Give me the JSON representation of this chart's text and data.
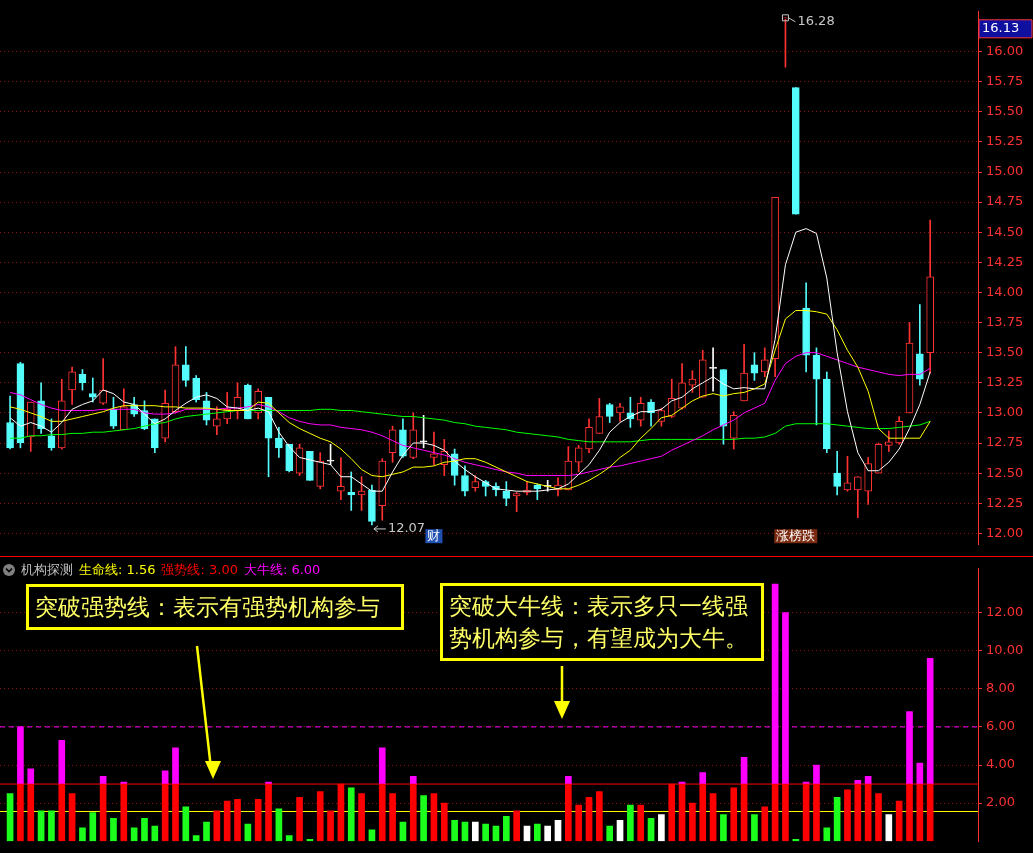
{
  "chart_data": [
    {
      "type": "candlestick",
      "categories": [
        null,
        null,
        null,
        null,
        null,
        null,
        null,
        null,
        null,
        null,
        null,
        null,
        null,
        null,
        null,
        null,
        null,
        null,
        null,
        null,
        null,
        null,
        null,
        null,
        null,
        null,
        null,
        null,
        null,
        null,
        null,
        null,
        null,
        null,
        null,
        null,
        null,
        null,
        null,
        null,
        null,
        null,
        null,
        null,
        null,
        null,
        null,
        null,
        null,
        null,
        null,
        null,
        null,
        null,
        null,
        null,
        null,
        null,
        null,
        null,
        null,
        null,
        null,
        null,
        null,
        null,
        null,
        null,
        null,
        null,
        null,
        null,
        null,
        null,
        null,
        null,
        null,
        null,
        null,
        null,
        null,
        null,
        null,
        null,
        null,
        null,
        null,
        null,
        null,
        null
      ],
      "ohlc": [
        [
          12.92,
          13.14,
          12.7,
          12.71
        ],
        [
          13.41,
          13.42,
          12.71,
          12.75
        ],
        [
          12.8,
          13.09,
          12.68,
          13.09
        ],
        [
          13.1,
          13.25,
          12.83,
          12.87
        ],
        [
          12.81,
          12.95,
          12.69,
          12.71
        ],
        [
          12.71,
          13.28,
          12.7,
          13.1
        ],
        [
          13.19,
          13.38,
          13.07,
          13.34
        ],
        [
          13.32,
          13.36,
          13.19,
          13.25
        ],
        [
          13.16,
          13.29,
          13.09,
          13.13
        ],
        [
          13.08,
          13.45,
          13.07,
          13.19
        ],
        [
          13.03,
          13.13,
          12.87,
          12.89
        ],
        [
          12.86,
          13.2,
          12.86,
          13.05
        ],
        [
          13.07,
          13.13,
          12.97,
          12.99
        ],
        [
          13.02,
          13.1,
          12.86,
          12.87
        ],
        [
          12.95,
          12.95,
          12.67,
          12.71
        ],
        [
          12.79,
          13.19,
          12.76,
          13.08
        ],
        [
          13.01,
          13.55,
          13.0,
          13.4
        ],
        [
          13.4,
          13.55,
          13.22,
          13.27
        ],
        [
          13.29,
          13.31,
          13.09,
          13.11
        ],
        [
          13.1,
          13.17,
          12.9,
          12.94
        ],
        [
          12.89,
          13.05,
          12.82,
          12.95
        ],
        [
          12.95,
          13.17,
          12.91,
          13.03
        ],
        [
          13.02,
          13.25,
          12.95,
          13.13
        ],
        [
          13.23,
          13.24,
          12.95,
          12.95
        ],
        [
          13.0,
          13.2,
          12.95,
          13.18
        ],
        [
          13.13,
          13.13,
          12.47,
          12.79
        ],
        [
          12.79,
          12.88,
          12.63,
          12.71
        ],
        [
          12.74,
          12.74,
          12.51,
          12.52
        ],
        [
          12.5,
          12.74,
          12.48,
          12.71
        ],
        [
          12.68,
          12.68,
          12.44,
          12.44
        ],
        [
          12.39,
          12.67,
          12.37,
          12.6
        ],
        [
          12.6,
          12.74,
          12.57,
          12.6
        ],
        [
          12.35,
          12.63,
          12.28,
          12.39
        ],
        [
          12.34,
          12.51,
          12.19,
          12.32
        ],
        [
          12.32,
          12.47,
          12.19,
          12.35
        ],
        [
          12.36,
          12.4,
          12.07,
          12.1
        ],
        [
          12.23,
          12.62,
          12.11,
          12.6
        ],
        [
          12.67,
          12.89,
          12.59,
          12.86
        ],
        [
          12.86,
          12.95,
          12.63,
          12.64
        ],
        [
          12.63,
          13.0,
          12.62,
          12.86
        ],
        [
          12.76,
          12.98,
          12.71,
          12.76
        ],
        [
          12.63,
          12.84,
          12.57,
          12.66
        ],
        [
          12.57,
          12.78,
          12.48,
          12.68
        ],
        [
          12.66,
          12.7,
          12.4,
          12.48
        ],
        [
          12.48,
          12.56,
          12.31,
          12.35
        ],
        [
          12.38,
          12.48,
          12.35,
          12.43
        ],
        [
          12.43,
          12.44,
          12.31,
          12.39
        ],
        [
          12.39,
          12.42,
          12.31,
          12.36
        ],
        [
          12.35,
          12.43,
          12.23,
          12.29
        ],
        [
          12.31,
          12.34,
          12.18,
          12.33
        ],
        [
          12.34,
          12.43,
          12.32,
          12.36
        ],
        [
          12.4,
          12.41,
          12.28,
          12.37
        ],
        [
          12.39,
          12.44,
          12.35,
          12.39
        ],
        [
          12.36,
          12.46,
          12.31,
          12.4
        ],
        [
          12.36,
          12.72,
          12.36,
          12.6
        ],
        [
          12.59,
          12.73,
          12.51,
          12.71
        ],
        [
          12.7,
          12.95,
          12.67,
          12.88
        ],
        [
          12.83,
          13.12,
          12.83,
          12.97
        ],
        [
          13.07,
          13.08,
          12.92,
          12.97
        ],
        [
          13.0,
          13.08,
          12.93,
          13.05
        ],
        [
          13.0,
          13.13,
          12.88,
          12.95
        ],
        [
          12.94,
          13.13,
          12.89,
          13.08
        ],
        [
          13.09,
          13.11,
          12.89,
          13.0
        ],
        [
          12.93,
          13.04,
          12.89,
          13.02
        ],
        [
          12.97,
          13.28,
          12.96,
          13.12
        ],
        [
          13.04,
          13.41,
          13.03,
          13.25
        ],
        [
          13.23,
          13.35,
          13.17,
          13.28
        ],
        [
          13.13,
          13.52,
          13.13,
          13.44
        ],
        [
          13.37,
          13.54,
          13.18,
          13.37
        ],
        [
          13.36,
          13.36,
          12.74,
          12.89
        ],
        [
          12.79,
          13.01,
          12.7,
          12.98
        ],
        [
          13.1,
          13.57,
          13.1,
          13.33
        ],
        [
          13.4,
          13.5,
          13.27,
          13.33
        ],
        [
          13.34,
          13.54,
          13.3,
          13.44
        ],
        [
          13.45,
          14.79,
          13.3,
          14.79
        ],
        [
          16.27,
          16.28,
          15.87,
          16.28
        ],
        [
          15.7,
          15.7,
          14.65,
          14.65
        ],
        [
          13.87,
          14.08,
          13.34,
          13.48
        ],
        [
          13.48,
          13.54,
          12.9,
          13.28
        ],
        [
          13.28,
          13.34,
          12.67,
          12.7
        ],
        [
          12.5,
          12.68,
          12.32,
          12.39
        ],
        [
          12.36,
          12.64,
          12.35,
          12.42
        ],
        [
          12.36,
          12.47,
          12.13,
          12.47
        ],
        [
          12.35,
          12.63,
          12.24,
          12.58
        ],
        [
          12.5,
          12.75,
          12.5,
          12.74
        ],
        [
          12.73,
          12.85,
          12.68,
          12.76
        ],
        [
          12.75,
          12.97,
          12.74,
          12.93
        ],
        [
          13.0,
          13.75,
          13.0,
          13.58
        ],
        [
          13.49,
          13.9,
          13.23,
          13.28
        ],
        [
          13.5,
          14.6,
          13.33,
          14.13
        ]
      ],
      "colors": [
        "#54fcfc",
        "#54fcfc",
        "#ff3232",
        "#54fcfc",
        "#54fcfc",
        "#ff3232",
        "#ff3232",
        "#54fcfc",
        "#54fcfc",
        "#ff3232",
        "#54fcfc",
        "#ff3232",
        "#54fcfc",
        "#54fcfc",
        "#54fcfc",
        "#ff3232",
        "#ff3232",
        "#54fcfc",
        "#54fcfc",
        "#54fcfc",
        "#ff3232",
        "#ff3232",
        "#ff3232",
        "#54fcfc",
        "#ff3232",
        "#54fcfc",
        "#54fcfc",
        "#54fcfc",
        "#ff3232",
        "#54fcfc",
        "#ff3232",
        "#ffffff",
        "#ff3232",
        "#54fcfc",
        "#ff3232",
        "#54fcfc",
        "#ff3232",
        "#ff3232",
        "#54fcfc",
        "#ff3232",
        "#ffffff",
        "#ff3232",
        "#ff3232",
        "#54fcfc",
        "#54fcfc",
        "#ff3232",
        "#54fcfc",
        "#54fcfc",
        "#54fcfc",
        "#ff3232",
        "#ff3232",
        "#54fcfc",
        "#ffffff",
        "#ff3232",
        "#ff3232",
        "#ff3232",
        "#ff3232",
        "#ff3232",
        "#54fcfc",
        "#ff3232",
        "#54fcfc",
        "#ff3232",
        "#54fcfc",
        "#ff3232",
        "#ff3232",
        "#ff3232",
        "#ff3232",
        "#ff3232",
        "#ffffff",
        "#54fcfc",
        "#ff3232",
        "#ff3232",
        "#54fcfc",
        "#ff3232",
        "#ff3232",
        "#ff3232",
        "#54fcfc",
        "#54fcfc",
        "#54fcfc",
        "#54fcfc",
        "#54fcfc",
        "#ff3232",
        "#ff3232",
        "#ff3232",
        "#ff3232",
        "#ff3232",
        "#ff3232",
        "#ff3232",
        "#54fcfc",
        "#ff3232"
      ],
      "series": [
        {
          "type": "line",
          "color": "#00ff00",
          "values": [
            12.79,
            12.79,
            12.81,
            12.81,
            12.82,
            12.82,
            12.83,
            12.83,
            12.84,
            12.84,
            12.85,
            12.86,
            12.87,
            12.89,
            12.91,
            12.92,
            12.95,
            12.97,
            12.98,
            12.99,
            13.0,
            13.01,
            13.02,
            13.02,
            13.02,
            13.02,
            13.02,
            13.02,
            13.02,
            13.02,
            13.03,
            13.03,
            13.02,
            13.02,
            13.01,
            13.0,
            12.99,
            12.98,
            12.97,
            12.97,
            12.96,
            12.95,
            12.94,
            12.92,
            12.91,
            12.89,
            12.88,
            12.87,
            12.86,
            12.84,
            12.83,
            12.82,
            12.81,
            12.8,
            12.78,
            12.77,
            12.76,
            12.76,
            12.76,
            12.76,
            12.76,
            12.77,
            12.78,
            12.78,
            12.78,
            12.78,
            12.78,
            12.78,
            12.78,
            12.78,
            12.78,
            12.79,
            12.79,
            12.8,
            12.83,
            12.89,
            12.91,
            12.91,
            12.91,
            12.91,
            12.9,
            12.89,
            12.88,
            12.87,
            12.87,
            12.87,
            12.88,
            12.89,
            12.9,
            12.93
          ]
        },
        {
          "type": "line",
          "color": "#ff00ff",
          "values": [
            13.17,
            13.15,
            13.11,
            13.07,
            13.04,
            13.02,
            13.02,
            13.02,
            13.02,
            13.03,
            13.03,
            13.03,
            13.03,
            13.0,
            12.99,
            12.99,
            13.0,
            13.03,
            13.03,
            13.03,
            13.03,
            13.04,
            13.04,
            13.05,
            13.07,
            13.05,
            13.01,
            12.96,
            12.93,
            12.91,
            12.9,
            12.9,
            12.88,
            12.87,
            12.86,
            12.84,
            12.81,
            12.77,
            12.73,
            12.71,
            12.69,
            12.67,
            12.65,
            12.62,
            12.59,
            12.57,
            12.55,
            12.53,
            12.51,
            12.5,
            12.48,
            12.48,
            12.48,
            12.48,
            12.48,
            12.49,
            12.51,
            12.53,
            12.55,
            12.56,
            12.58,
            12.6,
            12.62,
            12.64,
            12.69,
            12.73,
            12.77,
            12.81,
            12.86,
            12.9,
            12.94,
            13.0,
            13.04,
            13.08,
            13.27,
            13.41,
            13.47,
            13.5,
            13.5,
            13.47,
            13.44,
            13.41,
            13.38,
            13.36,
            13.34,
            13.32,
            13.31,
            13.32,
            13.32,
            13.37
          ]
        },
        {
          "type": "line",
          "color": "#ffff00",
          "values": [
            13.05,
            13.03,
            13.0,
            12.97,
            12.93,
            12.93,
            12.95,
            12.97,
            12.99,
            13.01,
            13.04,
            13.06,
            13.06,
            13.06,
            13.06,
            13.05,
            13.05,
            13.04,
            13.04,
            13.04,
            13.03,
            13.02,
            13.02,
            13.02,
            13.09,
            13.08,
            13.0,
            12.92,
            12.87,
            12.83,
            12.79,
            12.76,
            12.7,
            12.62,
            12.53,
            12.48,
            12.47,
            12.49,
            12.51,
            12.55,
            12.55,
            12.56,
            12.59,
            12.6,
            12.62,
            12.62,
            12.59,
            12.55,
            12.51,
            12.47,
            12.43,
            12.41,
            12.39,
            12.37,
            12.37,
            12.4,
            12.44,
            12.49,
            12.55,
            12.63,
            12.69,
            12.79,
            12.87,
            12.96,
            12.98,
            13.04,
            13.1,
            13.14,
            13.16,
            13.14,
            13.16,
            13.17,
            13.2,
            13.24,
            13.52,
            13.78,
            13.85,
            13.85,
            13.84,
            13.82,
            13.69,
            13.52,
            13.38,
            13.18,
            12.87,
            12.79,
            12.79,
            12.79,
            12.79,
            12.93
          ]
        },
        {
          "type": "line",
          "color": "#ffffff",
          "values": [
            12.96,
            12.89,
            12.92,
            12.89,
            12.84,
            12.92,
            13.03,
            13.07,
            13.1,
            13.19,
            13.16,
            13.09,
            13.07,
            12.99,
            12.91,
            12.95,
            13.02,
            13.08,
            13.13,
            13.15,
            13.12,
            13.05,
            13.04,
            13.02,
            13.04,
            13.01,
            12.84,
            12.72,
            12.63,
            12.61,
            12.59,
            12.57,
            12.47,
            12.47,
            12.41,
            12.35,
            12.35,
            12.51,
            12.65,
            12.75,
            12.75,
            12.73,
            12.69,
            12.6,
            12.53,
            12.47,
            12.42,
            12.37,
            12.36,
            12.35,
            12.35,
            12.35,
            12.36,
            12.37,
            12.41,
            12.49,
            12.57,
            12.69,
            12.84,
            12.92,
            12.97,
            13.01,
            13.01,
            13.03,
            13.1,
            13.13,
            13.2,
            13.25,
            13.3,
            13.24,
            13.2,
            13.21,
            13.2,
            13.2,
            13.61,
            14.23,
            14.5,
            14.53,
            14.49,
            14.12,
            13.5,
            13.01,
            12.67,
            12.52,
            12.52,
            12.59,
            12.7,
            12.87,
            13.07,
            13.34
          ]
        }
      ],
      "ylim": [
        11.91,
        16.33
      ],
      "yticks": [
        {
          "value": 12,
          "label": "12.00"
        },
        {
          "value": 12.25,
          "label": "12.25"
        },
        {
          "value": 12.5,
          "label": "12.50"
        },
        {
          "value": 12.75,
          "label": "12.75"
        },
        {
          "value": 13,
          "label": "13.00"
        },
        {
          "value": 13.25,
          "label": "13.25"
        },
        {
          "value": 13.5,
          "label": "13.50"
        },
        {
          "value": 13.75,
          "label": "13.75"
        },
        {
          "value": 14,
          "label": "14.00"
        },
        {
          "value": 14.25,
          "label": "14.25"
        },
        {
          "value": 14.5,
          "label": "14.50"
        },
        {
          "value": 14.75,
          "label": "14.75"
        },
        {
          "value": 15,
          "label": "15.00"
        },
        {
          "value": 15.25,
          "label": "15.25"
        },
        {
          "value": 15.5,
          "label": "15.50"
        },
        {
          "value": 15.75,
          "label": "15.75"
        },
        {
          "value": 16,
          "label": "16.00"
        }
      ],
      "grid": "y",
      "legend": false,
      "tick_labels": "y",
      "annotations": [
        "16.13",
        "16.28",
        "12.07",
        "财",
        "涨榜跌"
      ]
    },
    {
      "type": "bar",
      "title": "机构探测",
      "stacked": true,
      "categories": [
        null,
        null,
        null,
        null,
        null,
        null,
        null,
        null,
        null,
        null,
        null,
        null,
        null,
        null,
        null,
        null,
        null,
        null,
        null,
        null,
        null,
        null,
        null,
        null,
        null,
        null,
        null,
        null,
        null,
        null,
        null,
        null,
        null,
        null,
        null,
        null,
        null,
        null,
        null,
        null,
        null,
        null,
        null,
        null,
        null,
        null,
        null,
        null,
        null,
        null,
        null,
        null,
        null,
        null,
        null,
        null,
        null,
        null,
        null,
        null,
        null,
        null,
        null,
        null,
        null,
        null,
        null,
        null,
        null,
        null,
        null,
        null,
        null,
        null,
        null,
        null,
        null,
        null,
        null,
        null,
        null,
        null,
        null,
        null,
        null,
        null,
        null,
        null,
        null,
        null
      ],
      "series": [
        {
          "colors": [
            "#1cff1c",
            "#ff0000",
            "#ff0000",
            "#1cff1c",
            "#1cff1c",
            "#ff0000",
            "#ff0000",
            "#1cff1c",
            "#1cff1c",
            "#ff0000",
            "#1cff1c",
            "#ff0000",
            "#1cff1c",
            "#1cff1c",
            "#1cff1c",
            "#ff0000",
            "#ff0000",
            "#1cff1c",
            "#1cff1c",
            "#1cff1c",
            "#ff0000",
            "#ff0000",
            "#ff0000",
            "#1cff1c",
            "#ff0000",
            "#ff0000",
            "#1cff1c",
            "#1cff1c",
            "#ff0000",
            "#1cff1c",
            "#ff0000",
            "#ff0000",
            "#ff0000",
            "#1cff1c",
            "#ff0000",
            "#1cff1c",
            "#ff0000",
            "#ff0000",
            "#1cff1c",
            "#ff0000",
            "#1cff1c",
            "#ff0000",
            "#ff0000",
            "#1cff1c",
            "#1cff1c",
            "#ffffff",
            "#1cff1c",
            "#1cff1c",
            "#1cff1c",
            "#ff0000",
            "#ffffff",
            "#1cff1c",
            "#ffffff",
            "#ffffff",
            "#ff0000",
            "#ff0000",
            "#ff0000",
            "#ff0000",
            "#1cff1c",
            "#ffffff",
            "#1cff1c",
            "#ff0000",
            "#1cff1c",
            "#ffffff",
            "#ff0000",
            "#ff0000",
            "#ff0000",
            "#ff0000",
            "#ff0000",
            "#1cff1c",
            "#ff0000",
            "#ff0000",
            "#1cff1c",
            "#ff0000",
            "#ff0000",
            "#ff0000",
            "#1cff1c",
            "#ff0000",
            "#ff0000",
            "#1cff1c",
            "#1cff1c",
            "#ff0000",
            "#ff0000",
            "#ff0000",
            "#ff0000",
            "#ffffff",
            "#ff0000",
            "#ff0000",
            "#ff0000",
            "#ff0000"
          ],
          "values": [
            2.5,
            3.0,
            3.0,
            1.6,
            1.6,
            3.0,
            2.5,
            0.7,
            1.5,
            3.0,
            1.2,
            3.0,
            0.7,
            1.2,
            0.8,
            3.0,
            3.0,
            1.8,
            0.3,
            1.0,
            1.6,
            2.1,
            2.2,
            0.9,
            2.2,
            3.0,
            1.7,
            0.3,
            2.3,
            0.1,
            2.6,
            1.6,
            3.0,
            2.8,
            2.5,
            0.6,
            3.0,
            2.5,
            1.0,
            3.0,
            2.4,
            2.5,
            2.0,
            1.1,
            1.0,
            1.0,
            0.9,
            0.8,
            1.3,
            1.6,
            0.8,
            0.9,
            0.8,
            1.1,
            3.0,
            1.9,
            2.3,
            2.6,
            0.8,
            1.1,
            1.9,
            1.9,
            1.2,
            1.4,
            3.0,
            3.0,
            2.0,
            3.0,
            2.5,
            1.4,
            2.8,
            3.0,
            1.4,
            1.8,
            3.0,
            3.0,
            0.1,
            3.0,
            3.0,
            0.7,
            2.3,
            2.7,
            3.0,
            3.0,
            2.5,
            1.4,
            2.1,
            3.0,
            3.0,
            3.0
          ]
        },
        {
          "color": "#ff00ff",
          "values": [
            null,
            3.0,
            0.8,
            null,
            null,
            2.3,
            null,
            null,
            null,
            0.4,
            null,
            0.1,
            null,
            null,
            null,
            0.7,
            1.9,
            null,
            null,
            null,
            null,
            null,
            null,
            null,
            null,
            0.1,
            null,
            null,
            null,
            null,
            null,
            null,
            null,
            null,
            null,
            null,
            1.9,
            null,
            null,
            0.4,
            null,
            null,
            null,
            null,
            null,
            null,
            null,
            null,
            null,
            null,
            null,
            null,
            null,
            null,
            0.4,
            null,
            null,
            null,
            null,
            null,
            null,
            null,
            null,
            null,
            null,
            0.1,
            null,
            0.6,
            null,
            null,
            null,
            1.4,
            null,
            null,
            10.5,
            9.0,
            null,
            0.1,
            1.0,
            null,
            null,
            null,
            0.2,
            0.4,
            null,
            null,
            null,
            3.8,
            1.1,
            6.6
          ]
        }
      ],
      "ylim": [
        0,
        14.3
      ],
      "yticks": [
        {
          "value": 2,
          "label": "2.00"
        },
        {
          "value": 4,
          "label": "4.00"
        },
        {
          "value": 6,
          "label": "6.00"
        },
        {
          "value": 8,
          "label": "8.00"
        },
        {
          "value": 10,
          "label": "10.00"
        },
        {
          "value": 12,
          "label": "12.00"
        }
      ],
      "ref_lines": [
        {
          "axis": "y",
          "value": 1.56,
          "label": "生命线: 1.56",
          "color": "#ffff00"
        },
        {
          "axis": "y",
          "value": 3.0,
          "label": "强势线: 3.00",
          "color": "#ff0000"
        },
        {
          "axis": "y",
          "value": 6.0,
          "label": "大牛线: 6.00",
          "color": "#ff00ff",
          "line_style": "dashed"
        }
      ],
      "grid": "y",
      "legend": false,
      "tick_labels": "y",
      "annotations": [
        "突破强势线：表示有强势机构参与",
        "突破大牛线：表示多只一线强势机构参与，有望成为大牛。"
      ]
    }
  ]
}
